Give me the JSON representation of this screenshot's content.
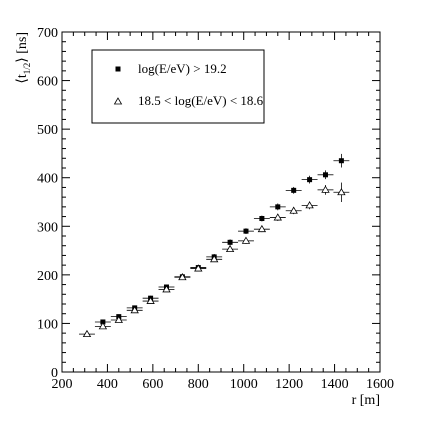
{
  "chart_data": {
    "type": "scatter",
    "xlabel": "r [m]",
    "ylabel_main": "⟨t",
    "ylabel_sub": "1/2",
    "ylabel_end": "⟩ [ns]",
    "xlim": [
      200,
      1600
    ],
    "ylim": [
      0,
      700
    ],
    "xticks": [
      200,
      400,
      600,
      800,
      1000,
      1200,
      1400,
      1600
    ],
    "yticks": [
      0,
      100,
      200,
      300,
      400,
      500,
      600,
      700
    ],
    "grid": false,
    "legend_position": "top-left",
    "series": [
      {
        "name": "log(E/eV) > 19.2",
        "marker": "filled-square",
        "color": "#000000",
        "x": [
          380,
          450,
          520,
          590,
          660,
          730,
          800,
          870,
          940,
          1010,
          1080,
          1150,
          1220,
          1290,
          1360,
          1430
        ],
        "y": [
          103,
          114,
          132,
          152,
          175,
          196,
          215,
          237,
          267,
          290,
          316,
          340,
          374,
          396,
          406,
          435
        ],
        "yerr": [
          4,
          4,
          4,
          5,
          5,
          5,
          5,
          6,
          6,
          6,
          6,
          7,
          7,
          8,
          9,
          14
        ]
      },
      {
        "name": "18.5 < log(E/eV) < 18.6",
        "marker": "open-triangle",
        "color": "#000000",
        "x": [
          310,
          380,
          450,
          520,
          590,
          660,
          730,
          800,
          870,
          940,
          1010,
          1080,
          1150,
          1220,
          1290,
          1360,
          1430
        ],
        "y": [
          78,
          94,
          107,
          127,
          146,
          170,
          195,
          213,
          232,
          253,
          270,
          294,
          318,
          332,
          343,
          375,
          370
        ],
        "yerr": [
          4,
          4,
          4,
          4,
          5,
          5,
          5,
          5,
          5,
          6,
          6,
          6,
          7,
          7,
          8,
          10,
          20
        ]
      }
    ]
  }
}
